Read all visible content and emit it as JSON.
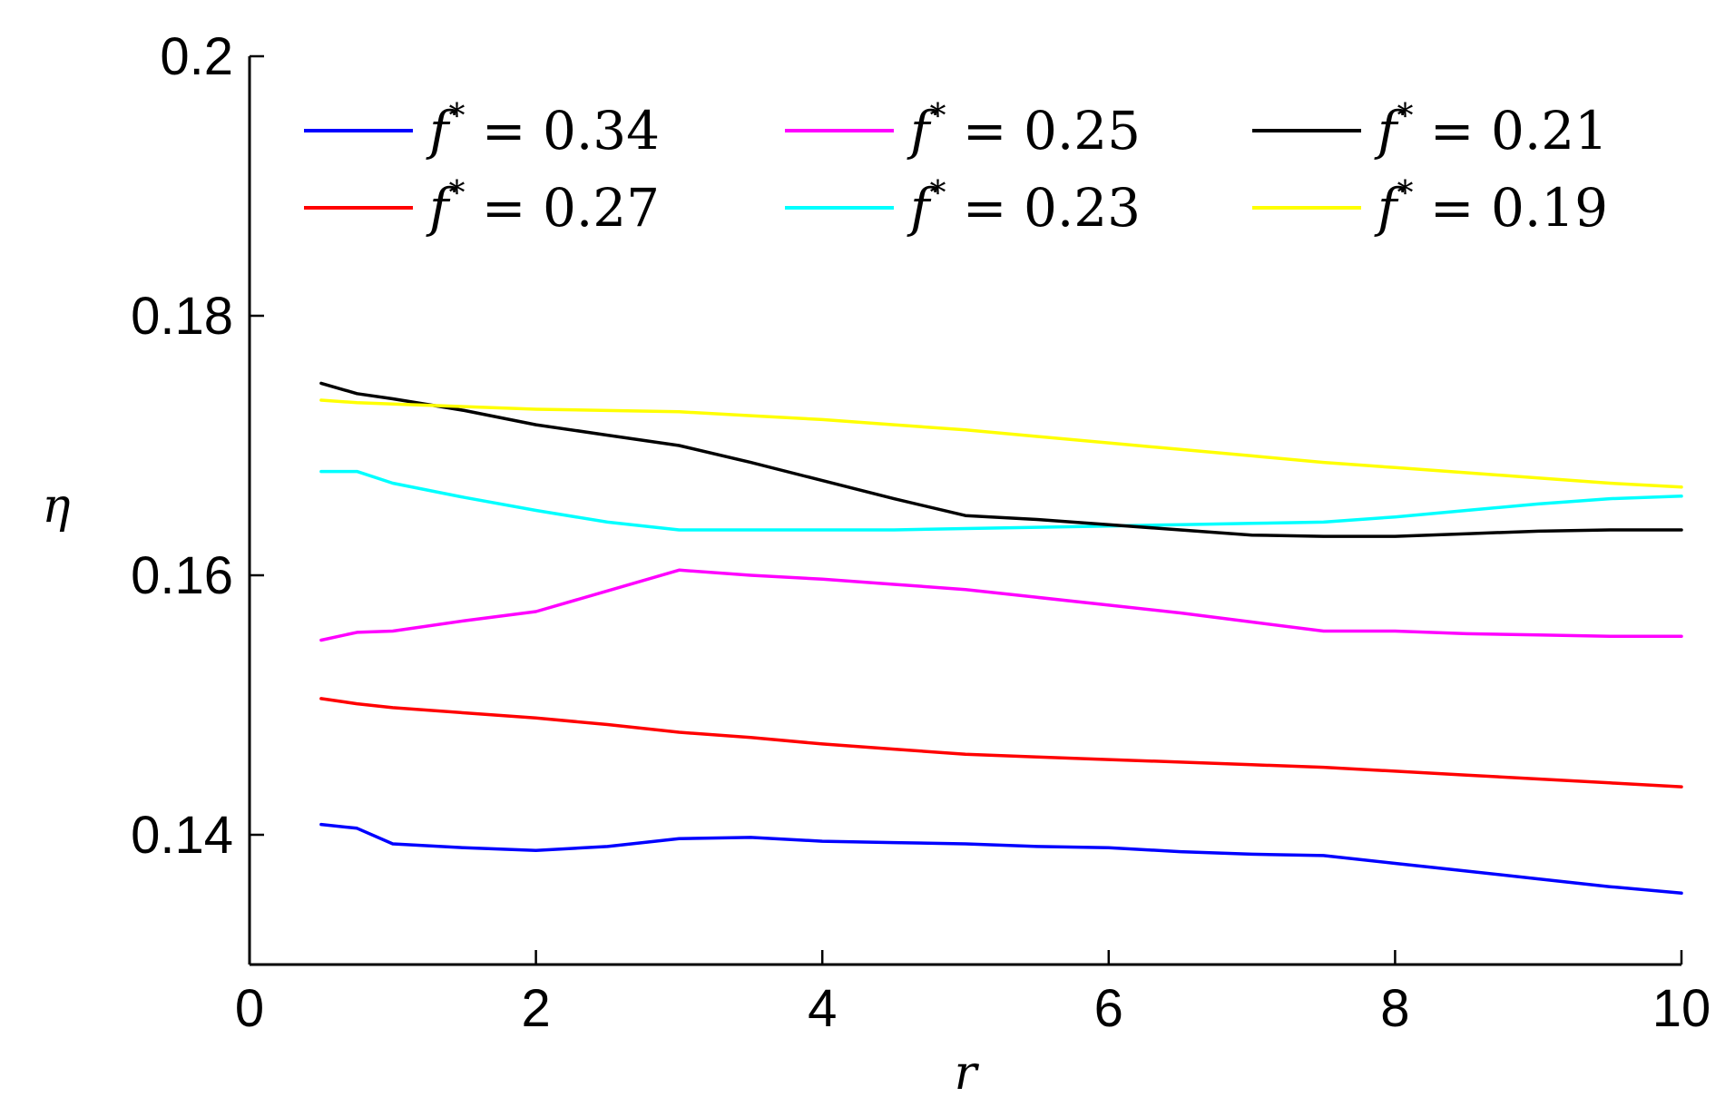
{
  "chart_data": {
    "type": "line",
    "title": "",
    "xlabel": "r",
    "ylabel": "η",
    "xlim": [
      0,
      10
    ],
    "ylim": [
      0.13,
      0.2
    ],
    "xticks": [
      0,
      2,
      4,
      6,
      8,
      10
    ],
    "xtick_labels": [
      "0",
      "2",
      "4",
      "6",
      "8",
      "10"
    ],
    "yticks": [
      0.14,
      0.16,
      0.18,
      0.2
    ],
    "ytick_labels": [
      "0.14",
      "0.16",
      "0.18",
      "0.2"
    ],
    "grid": false,
    "legend_position": "top",
    "series": [
      {
        "name": "f* = 0.34",
        "label_symbol": "f",
        "label_sup": "*",
        "label_rest": " = 0.34",
        "color": "#0000ff",
        "x": [
          0.5,
          0.75,
          1.0,
          1.5,
          2.0,
          2.5,
          3.0,
          3.5,
          4.0,
          4.5,
          5.0,
          5.5,
          6.0,
          6.5,
          7.0,
          7.5,
          8.0,
          8.5,
          9.0,
          9.5,
          10.0
        ],
        "y": [
          0.1408,
          0.1405,
          0.1393,
          0.139,
          0.1388,
          0.1391,
          0.1397,
          0.1398,
          0.1395,
          0.1394,
          0.1393,
          0.1391,
          0.139,
          0.1387,
          0.1385,
          0.1384,
          0.1378,
          0.1372,
          0.1366,
          0.136,
          0.1355
        ]
      },
      {
        "name": "f* = 0.27",
        "label_symbol": "f",
        "label_sup": "*",
        "label_rest": " = 0.27",
        "color": "#ff0000",
        "x": [
          0.5,
          0.75,
          1.0,
          1.5,
          2.0,
          2.5,
          3.0,
          3.5,
          4.0,
          4.5,
          5.0,
          5.5,
          6.0,
          6.5,
          7.0,
          7.5,
          8.0,
          8.5,
          9.0,
          9.5,
          10.0
        ],
        "y": [
          0.1505,
          0.1501,
          0.1498,
          0.1494,
          0.149,
          0.1485,
          0.1479,
          0.1475,
          0.147,
          0.1466,
          0.1462,
          0.146,
          0.1458,
          0.1456,
          0.1454,
          0.1452,
          0.1449,
          0.1446,
          0.1443,
          0.144,
          0.1437
        ]
      },
      {
        "name": "f* = 0.25",
        "label_symbol": "f",
        "label_sup": "*",
        "label_rest": " = 0.25",
        "color": "#ff00ff",
        "x": [
          0.5,
          0.75,
          1.0,
          1.5,
          2.0,
          2.5,
          3.0,
          3.5,
          4.0,
          4.5,
          5.0,
          5.5,
          6.0,
          6.5,
          7.0,
          7.5,
          8.0,
          8.5,
          9.0,
          9.5,
          10.0
        ],
        "y": [
          0.155,
          0.1556,
          0.1557,
          0.1565,
          0.1572,
          0.1588,
          0.1604,
          0.16,
          0.1597,
          0.1593,
          0.1589,
          0.1583,
          0.1577,
          0.1571,
          0.1564,
          0.1557,
          0.1557,
          0.1555,
          0.1554,
          0.1553,
          0.1553
        ]
      },
      {
        "name": "f* = 0.23",
        "label_symbol": "f",
        "label_sup": "*",
        "label_rest": " = 0.23",
        "color": "#00ffff",
        "x": [
          0.5,
          0.75,
          1.0,
          1.5,
          2.0,
          2.5,
          3.0,
          3.5,
          4.0,
          4.5,
          5.0,
          5.5,
          6.0,
          6.5,
          7.0,
          7.5,
          8.0,
          8.5,
          9.0,
          9.5,
          10.0
        ],
        "y": [
          0.168,
          0.168,
          0.1671,
          0.166,
          0.165,
          0.1641,
          0.1635,
          0.1635,
          0.1635,
          0.1635,
          0.1636,
          0.1637,
          0.1638,
          0.1639,
          0.164,
          0.1641,
          0.1645,
          0.165,
          0.1655,
          0.1659,
          0.1661
        ]
      },
      {
        "name": "f* = 0.21",
        "label_symbol": "f",
        "label_sup": "*",
        "label_rest": " = 0.21",
        "color": "#000000",
        "x": [
          0.5,
          0.75,
          1.0,
          1.5,
          2.0,
          2.5,
          3.0,
          3.5,
          4.0,
          4.5,
          5.0,
          5.5,
          6.0,
          6.5,
          7.0,
          7.5,
          8.0,
          8.5,
          9.0,
          9.5,
          10.0
        ],
        "y": [
          0.1748,
          0.174,
          0.1736,
          0.1727,
          0.1716,
          0.1708,
          0.17,
          0.1687,
          0.1673,
          0.1659,
          0.1646,
          0.1643,
          0.1639,
          0.1635,
          0.1631,
          0.163,
          0.163,
          0.1632,
          0.1634,
          0.1635,
          0.1635
        ]
      },
      {
        "name": "f* = 0.19",
        "label_symbol": "f",
        "label_sup": "*",
        "label_rest": " = 0.19",
        "color": "#ffff00",
        "x": [
          0.5,
          0.75,
          1.0,
          1.5,
          2.0,
          2.5,
          3.0,
          3.5,
          4.0,
          4.5,
          5.0,
          5.5,
          6.0,
          6.5,
          7.0,
          7.5,
          8.0,
          8.5,
          9.0,
          9.5,
          10.0
        ],
        "y": [
          0.1735,
          0.1733,
          0.1732,
          0.173,
          0.1728,
          0.1727,
          0.1726,
          0.1723,
          0.172,
          0.1716,
          0.1712,
          0.1707,
          0.1702,
          0.1697,
          0.1692,
          0.1687,
          0.1683,
          0.1679,
          0.1675,
          0.1671,
          0.1668
        ]
      }
    ]
  }
}
